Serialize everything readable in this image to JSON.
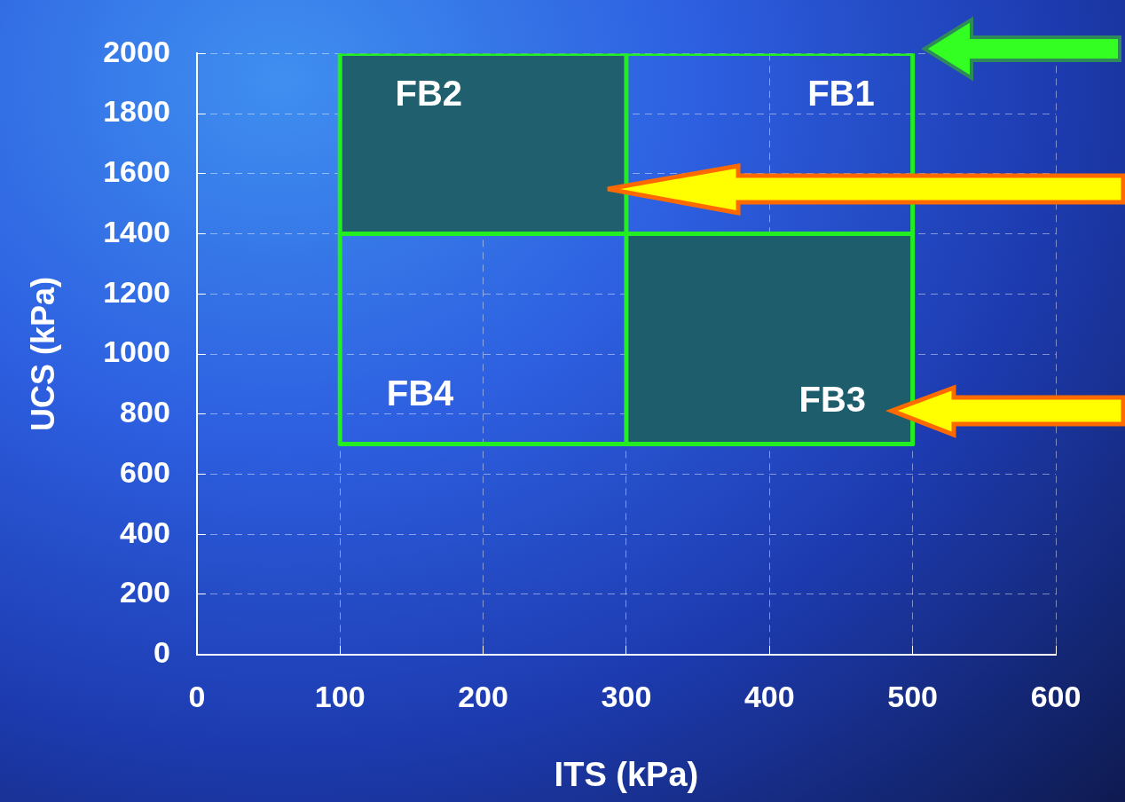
{
  "chart_data": {
    "type": "line",
    "xlabel": "ITS (kPa)",
    "ylabel": "UCS (kPa)",
    "xlim": [
      0,
      600
    ],
    "xticks": [
      0,
      100,
      200,
      300,
      400,
      500,
      600
    ],
    "ylim": [
      0,
      2000
    ],
    "yticks": [
      0,
      200,
      400,
      600,
      800,
      1000,
      1200,
      1400,
      1600,
      1800,
      2000
    ],
    "grid": true,
    "legend": false,
    "marker": "none",
    "annotations": [
      "FB1",
      "FB2",
      "FB3",
      "FB4"
    ],
    "series": [
      {
        "type": "area",
        "color": "#1f5f6e",
        "x": [
          100,
          300,
          300,
          100,
          100
        ],
        "values": [
          1400,
          1400,
          2000,
          2000,
          1400
        ]
      },
      {
        "type": "area",
        "color": "#1e5d6c",
        "x": [
          300,
          500,
          500,
          300,
          300
        ],
        "values": [
          700,
          700,
          1400,
          1400,
          700
        ]
      },
      {
        "type": "line",
        "color": "#22ee22",
        "x": [
          100,
          500
        ],
        "values": [
          2000,
          2000
        ]
      },
      {
        "type": "line",
        "color": "#22ee22",
        "x": [
          100,
          500
        ],
        "values": [
          1400,
          1400
        ]
      },
      {
        "type": "line",
        "color": "#22ee22",
        "x": [
          100,
          500
        ],
        "values": [
          700,
          700
        ]
      },
      {
        "type": "line",
        "color": "#22ee22",
        "x": [
          100,
          100
        ],
        "values": [
          700,
          2000
        ]
      },
      {
        "type": "line",
        "color": "#22ee22",
        "x": [
          300,
          300
        ],
        "values": [
          700,
          2000
        ]
      },
      {
        "type": "line",
        "color": "#22ee22",
        "x": [
          500,
          500
        ],
        "values": [
          700,
          2000
        ]
      }
    ]
  }
}
